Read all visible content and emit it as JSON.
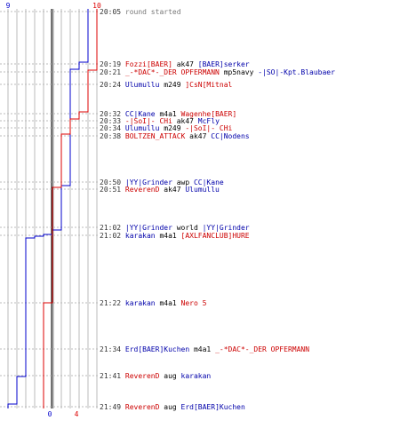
{
  "colors": {
    "blue": "#0000cc",
    "red": "#dd0000",
    "grid": "#bbbbbb",
    "center": "#000000"
  },
  "chart_data": {
    "type": "line",
    "ylim_blue_start": 9,
    "ylim_red_start": 10,
    "blue_final": 0,
    "red_final": 4,
    "labels": {
      "blue_start": "9",
      "red_start": "10",
      "blue_end": "0",
      "red_end": "4"
    },
    "series": [
      {
        "color": "blue",
        "x": [
          9,
          8,
          7,
          6,
          5,
          4,
          3,
          2,
          1,
          0
        ]
      },
      {
        "color": "red",
        "x": [
          10,
          9,
          8,
          7,
          6,
          5,
          4
        ]
      }
    ]
  },
  "events": [
    {
      "time": "20:05",
      "parts": [
        {
          "c": "gray",
          "s": "round started"
        }
      ]
    },
    {
      "time": "20:19",
      "parts": [
        {
          "c": "red",
          "s": "Fozzi[BAER]"
        },
        {
          "c": "plain",
          "s": " ak47 "
        },
        {
          "c": "blue",
          "s": "[BAER]serker"
        }
      ]
    },
    {
      "time": "20:21",
      "parts": [
        {
          "c": "red",
          "s": "_-*DAC*-_DER OPFERMANN"
        },
        {
          "c": "plain",
          "s": " mp5navy "
        },
        {
          "c": "blue",
          "s": "-|SO|-Kpt.Blaubaer"
        }
      ]
    },
    {
      "time": "20:24",
      "parts": [
        {
          "c": "blue",
          "s": "Ulumullu"
        },
        {
          "c": "plain",
          "s": " m249 "
        },
        {
          "c": "red",
          "s": "]CsN[Mitnal"
        }
      ]
    },
    {
      "time": "20:32",
      "parts": [
        {
          "c": "blue",
          "s": "CC|Kane"
        },
        {
          "c": "plain",
          "s": " m4a1 "
        },
        {
          "c": "red",
          "s": "Wagenhe[BAER]"
        }
      ]
    },
    {
      "time": "20:33",
      "parts": [
        {
          "c": "red",
          "s": "-|SoI|- CHi"
        },
        {
          "c": "plain",
          "s": " ak47 "
        },
        {
          "c": "blue",
          "s": "McFly"
        }
      ]
    },
    {
      "time": "20:34",
      "parts": [
        {
          "c": "blue",
          "s": "Ulumullu"
        },
        {
          "c": "plain",
          "s": " m249 "
        },
        {
          "c": "red",
          "s": "-|SoI|- CHi"
        }
      ]
    },
    {
      "time": "20:38",
      "parts": [
        {
          "c": "red",
          "s": "BOLTZEN_ATTACK"
        },
        {
          "c": "plain",
          "s": " ak47 "
        },
        {
          "c": "blue",
          "s": "CC|Nodens"
        }
      ]
    },
    {
      "time": "20:50",
      "parts": [
        {
          "c": "blue",
          "s": "|YY|Grinder"
        },
        {
          "c": "plain",
          "s": " awp "
        },
        {
          "c": "blue",
          "s": "CC|Kane"
        }
      ]
    },
    {
      "time": "20:51",
      "parts": [
        {
          "c": "red",
          "s": "ReverenD"
        },
        {
          "c": "plain",
          "s": " ak47 "
        },
        {
          "c": "blue",
          "s": "Ulumullu"
        }
      ]
    },
    {
      "time": "21:02",
      "parts": [
        {
          "c": "blue",
          "s": "|YY|Grinder"
        },
        {
          "c": "plain",
          "s": " world "
        },
        {
          "c": "blue",
          "s": "|YY|Grinder"
        }
      ]
    },
    {
      "time": "21:02",
      "parts": [
        {
          "c": "blue",
          "s": "karakan"
        },
        {
          "c": "plain",
          "s": " m4a1 "
        },
        {
          "c": "red",
          "s": "[AXLFANCLUB]HURE"
        }
      ]
    },
    {
      "time": "21:22",
      "parts": [
        {
          "c": "blue",
          "s": "karakan"
        },
        {
          "c": "plain",
          "s": " m4a1 "
        },
        {
          "c": "red",
          "s": "Nero 5"
        }
      ]
    },
    {
      "time": "21:34",
      "parts": [
        {
          "c": "blue",
          "s": "Erd[BAER]Kuchen"
        },
        {
          "c": "plain",
          "s": " m4a1 "
        },
        {
          "c": "red",
          "s": "_-*DAC*-_DER OPFERMANN"
        }
      ]
    },
    {
      "time": "21:41",
      "parts": [
        {
          "c": "red",
          "s": "ReverenD"
        },
        {
          "c": "plain",
          "s": " aug "
        },
        {
          "c": "blue",
          "s": "karakan"
        }
      ]
    },
    {
      "time": "21:49",
      "parts": [
        {
          "c": "red",
          "s": "ReverenD"
        },
        {
          "c": "plain",
          "s": " aug "
        },
        {
          "c": "blue",
          "s": "Erd[BAER]Kuchen"
        }
      ]
    }
  ]
}
